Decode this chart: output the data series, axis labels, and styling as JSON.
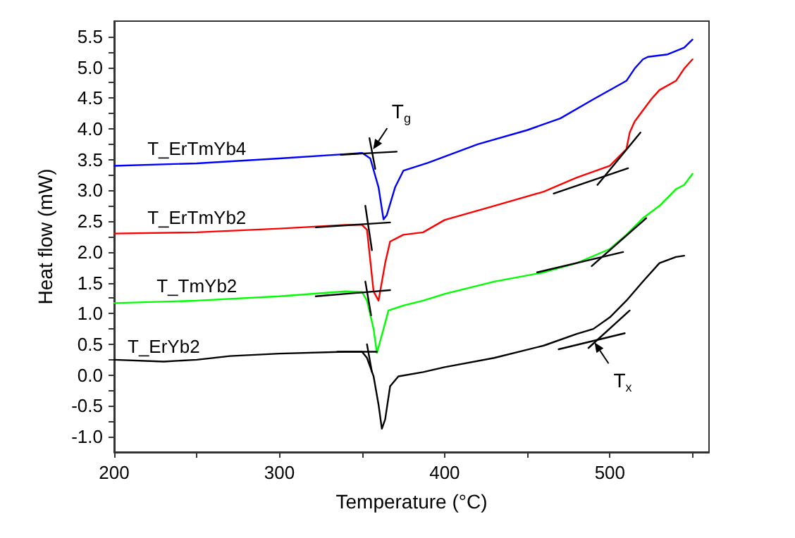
{
  "chart_data": {
    "type": "line",
    "xlabel": "Temperature (°C)",
    "ylabel": "Heat flow (mW)",
    "xlim": [
      200,
      560
    ],
    "ylim": [
      -1.25,
      5.75
    ],
    "xticks": [
      200,
      {
        "value": 250,
        "label": null
      },
      300,
      {
        "value": 350,
        "label": null
      },
      400,
      {
        "value": 450,
        "label": null
      },
      500,
      {
        "value": 550,
        "label": null
      }
    ],
    "yticks": [
      {
        "value": -1,
        "label": "-1.0"
      },
      {
        "value": -0.75,
        "label": null
      },
      {
        "value": -0.5,
        "label": "-0.5"
      },
      {
        "value": -0.25,
        "label": null
      },
      {
        "value": 0,
        "label": "0.0"
      },
      {
        "value": 0.25,
        "label": null
      },
      {
        "value": 0.5,
        "label": "0.5"
      },
      {
        "value": 0.75,
        "label": null
      },
      {
        "value": 1,
        "label": "1.0"
      },
      {
        "value": 1.25,
        "label": null
      },
      {
        "value": 1.5,
        "label": "1.5"
      },
      {
        "value": 1.75,
        "label": null
      },
      {
        "value": 2,
        "label": "2.0"
      },
      {
        "value": 2.25,
        "label": null
      },
      {
        "value": 2.5,
        "label": "2.5"
      },
      {
        "value": 2.75,
        "label": null
      },
      {
        "value": 3,
        "label": "3.0"
      },
      {
        "value": 3.25,
        "label": null
      },
      {
        "value": 3.5,
        "label": "3.5"
      },
      {
        "value": 3.75,
        "label": null
      },
      {
        "value": 4,
        "label": "4.0"
      },
      {
        "value": 4.25,
        "label": null
      },
      {
        "value": 4.5,
        "label": "4.5"
      },
      {
        "value": 4.75,
        "label": null
      },
      {
        "value": 5,
        "label": "5.0"
      },
      {
        "value": 5.25,
        "label": null
      },
      {
        "value": 5.5,
        "label": "5.5"
      }
    ],
    "grid": false,
    "legend": false,
    "annotations": [
      {
        "text": "T$_{g}$",
        "x": 355,
        "y": 3.6
      },
      {
        "text": "T$_{x}$",
        "x": 489,
        "y": 0.6
      }
    ],
    "series": [
      {
        "name": "T_ErTmYb4",
        "color": "#0000ff",
        "x": [
          200,
          250,
          300,
          340,
          350,
          355,
          360,
          363,
          365,
          370,
          375,
          390,
          400,
          420,
          450,
          470,
          490,
          510,
          515,
          520,
          523,
          535,
          545,
          550
        ],
        "values": [
          3.4,
          3.44,
          3.52,
          3.59,
          3.61,
          3.52,
          3.05,
          2.53,
          2.6,
          3.05,
          3.32,
          3.45,
          3.55,
          3.75,
          3.98,
          4.17,
          4.48,
          4.78,
          4.98,
          5.13,
          5.17,
          5.21,
          5.32,
          5.45
        ]
      },
      {
        "name": "T_ErTmYb2",
        "color": "#ff0000",
        "x": [
          200,
          250,
          300,
          340,
          350,
          353,
          357,
          360,
          364,
          367,
          375,
          387,
          400,
          430,
          460,
          480,
          500,
          510,
          512,
          515,
          525,
          530,
          540,
          545,
          550
        ],
        "values": [
          2.3,
          2.32,
          2.38,
          2.44,
          2.44,
          2.36,
          1.36,
          1.21,
          1.82,
          2.17,
          2.28,
          2.32,
          2.52,
          2.75,
          2.98,
          3.21,
          3.4,
          3.67,
          3.94,
          4.12,
          4.48,
          4.63,
          4.78,
          4.98,
          5.13
        ]
      },
      {
        "name": "T_TmYb2",
        "color": "#00ff00",
        "x": [
          200,
          250,
          300,
          340,
          350,
          353,
          357,
          359,
          363,
          366,
          375,
          387,
          400,
          430,
          460,
          480,
          500,
          510,
          520,
          530,
          540,
          545,
          550
        ],
        "values": [
          1.17,
          1.21,
          1.28,
          1.36,
          1.35,
          1.21,
          0.75,
          0.36,
          0.75,
          1.05,
          1.13,
          1.21,
          1.32,
          1.52,
          1.67,
          1.82,
          2.05,
          2.28,
          2.55,
          2.75,
          3.02,
          3.09,
          3.27
        ]
      },
      {
        "name": "T_ErYb2",
        "color": "#000000",
        "x": [
          200,
          230,
          250,
          270,
          300,
          340,
          350,
          353,
          357,
          360,
          362,
          364,
          367,
          372,
          387,
          400,
          430,
          460,
          480,
          490,
          500,
          510,
          520,
          530,
          540,
          545
        ],
        "values": [
          0.25,
          0.22,
          0.25,
          0.31,
          0.35,
          0.38,
          0.38,
          0.28,
          -0.02,
          -0.48,
          -0.87,
          -0.72,
          -0.18,
          -0.02,
          0.05,
          0.13,
          0.28,
          0.48,
          0.67,
          0.75,
          0.94,
          1.21,
          1.52,
          1.82,
          1.92,
          1.94
        ]
      },
      {
        "color": "#000000",
        "x": [
          337,
          371
        ],
        "values": [
          3.58,
          3.63
        ]
      },
      {
        "color": "#000000",
        "x": [
          354.5,
          358
        ],
        "values": [
          3.85,
          3.35
        ]
      },
      {
        "color": "#000000",
        "x": [
          322,
          367
        ],
        "values": [
          2.4,
          2.48
        ]
      },
      {
        "color": "#000000",
        "x": [
          352,
          356
        ],
        "values": [
          2.75,
          2.03
        ]
      },
      {
        "color": "#000000",
        "x": [
          322,
          367
        ],
        "values": [
          1.28,
          1.38
        ]
      },
      {
        "color": "#000000",
        "x": [
          352,
          355.5
        ],
        "values": [
          1.52,
          0.97
        ]
      },
      {
        "color": "#000000",
        "x": [
          335,
          359
        ],
        "values": [
          0.38,
          0.38
        ]
      },
      {
        "color": "#000000",
        "x": [
          353,
          356
        ],
        "values": [
          0.5,
          0.05
        ]
      },
      {
        "color": "#000000",
        "x": [
          466,
          511
        ],
        "values": [
          2.95,
          3.36
        ]
      },
      {
        "color": "#000000",
        "x": [
          492.5,
          518.5
        ],
        "values": [
          3.09,
          3.94
        ]
      },
      {
        "color": "#000000",
        "x": [
          456,
          508
        ],
        "values": [
          1.67,
          2
        ]
      },
      {
        "color": "#000000",
        "x": [
          489,
          522
        ],
        "values": [
          1.77,
          2.55
        ]
      },
      {
        "color": "#000000",
        "x": [
          469,
          509
        ],
        "values": [
          0.42,
          0.68
        ]
      },
      {
        "color": "#000000",
        "x": [
          487,
          512
        ],
        "values": [
          0.44,
          1.05
        ]
      }
    ]
  }
}
